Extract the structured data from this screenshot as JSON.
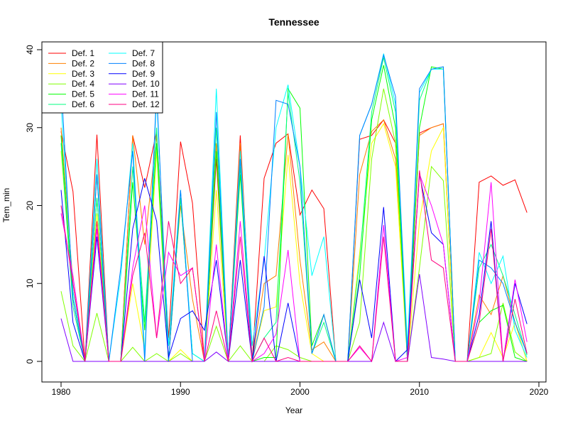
{
  "chart_data": {
    "type": "line",
    "title": "Tennessee",
    "xlabel": "Year",
    "ylabel": "Tem_min",
    "xlim": [
      1980,
      2019
    ],
    "ylim": [
      0,
      40
    ],
    "x_ticks": [
      "1980",
      "1990",
      "2000",
      "2010",
      "2020"
    ],
    "y_ticks": [
      "0",
      "10",
      "20",
      "30",
      "40"
    ],
    "grid": false,
    "legend_position": "top-left",
    "x": [
      1980,
      1981,
      1982,
      1983,
      1984,
      1985,
      1986,
      1987,
      1988,
      1989,
      1990,
      1991,
      1992,
      1993,
      1994,
      1995,
      1996,
      1997,
      1998,
      1999,
      2000,
      2001,
      2002,
      2003,
      2004,
      2005,
      2006,
      2007,
      2008,
      2009,
      2010,
      2011,
      2012,
      2013,
      2014,
      2015,
      2016,
      2017,
      2018,
      2019
    ],
    "series": [
      {
        "name": "Def. 1",
        "color": "#FF0000",
        "values": [
          29.5,
          21.8,
          0,
          29.1,
          0,
          0,
          29.0,
          22.3,
          29.5,
          3.0,
          28.2,
          20.3,
          0,
          26.0,
          0,
          29.0,
          0,
          23.5,
          28.0,
          29.2,
          18.8,
          22.0,
          19.6,
          0,
          0,
          28.5,
          29.0,
          31.0,
          28.0,
          0,
          29.3,
          30.0,
          30.5,
          0,
          0,
          23.0,
          23.8,
          22.6,
          23.3,
          19.1
        ]
      },
      {
        "name": "Def. 2",
        "color": "#FF8000",
        "values": [
          30.0,
          10.0,
          0,
          24.0,
          0,
          0,
          29.0,
          15.0,
          29.0,
          2.0,
          20.0,
          8.0,
          0,
          28.0,
          0,
          28.0,
          0,
          10.0,
          11.0,
          29.2,
          13.0,
          1.5,
          2.5,
          0,
          0,
          24.0,
          29.5,
          31.0,
          26.0,
          2.0,
          29.0,
          30.0,
          30.5,
          0,
          0,
          8.5,
          6.0,
          11.0,
          5.0,
          0
        ]
      },
      {
        "name": "Def. 3",
        "color": "#FFFF00",
        "values": [
          27.0,
          8.0,
          0,
          19.0,
          0,
          0,
          10.0,
          1.5,
          27.0,
          0,
          1.5,
          0,
          0,
          22.0,
          0,
          0,
          0,
          6.5,
          7.0,
          26.5,
          10.0,
          1.0,
          0,
          0,
          0,
          14.0,
          28.0,
          30.5,
          25.0,
          0,
          18.0,
          27.0,
          30.0,
          0,
          0,
          0.5,
          3.7,
          0.5,
          5.0,
          0
        ]
      },
      {
        "name": "Def. 4",
        "color": "#80FF00",
        "values": [
          9.0,
          2.0,
          0,
          6.2,
          0,
          0,
          1.8,
          0,
          1.0,
          0,
          1.0,
          0,
          0,
          4.5,
          0,
          2.0,
          0,
          0,
          2.0,
          1.5,
          0.5,
          0,
          0,
          0,
          0,
          5.0,
          26.0,
          35.0,
          28.0,
          0,
          12.0,
          25.0,
          23.2,
          0,
          0,
          0.5,
          1.0,
          7.5,
          1.2,
          0
        ]
      },
      {
        "name": "Def. 5",
        "color": "#00FF00",
        "values": [
          29.0,
          8.0,
          0,
          21.0,
          0,
          0,
          23.0,
          4.0,
          28.0,
          0,
          21.0,
          1.0,
          0,
          27.0,
          0,
          24.0,
          0,
          0.5,
          0.5,
          35.0,
          32.5,
          2.0,
          6.0,
          0,
          0,
          11.0,
          31.0,
          38.0,
          30.0,
          0,
          30.0,
          37.8,
          37.5,
          0,
          0,
          5.0,
          6.5,
          7.2,
          0.5,
          0
        ]
      },
      {
        "name": "Def. 6",
        "color": "#00FF80",
        "values": [
          28.0,
          7.0,
          0,
          21.0,
          0,
          0,
          25.0,
          5.0,
          30.0,
          0,
          21.0,
          1.0,
          0,
          30.0,
          0,
          25.0,
          0,
          3.0,
          5.0,
          34.5,
          23.0,
          1.0,
          5.0,
          0,
          0,
          13.0,
          32.0,
          39.0,
          32.0,
          1.0,
          33.5,
          37.5,
          37.8,
          0,
          0,
          12.0,
          15.0,
          11.0,
          6.0,
          0.8
        ]
      },
      {
        "name": "Def. 7",
        "color": "#00FFFF",
        "values": [
          33.0,
          9.0,
          0,
          26.0,
          0,
          11.0,
          28.0,
          1.0,
          34.0,
          2.0,
          22.0,
          1.0,
          0,
          35.0,
          0,
          27.0,
          2.0,
          13.0,
          30.0,
          35.5,
          25.0,
          11.0,
          16.0,
          0,
          0,
          29.0,
          33.0,
          39.5,
          33.0,
          2.0,
          34.5,
          37.5,
          37.5,
          0,
          0,
          14.0,
          10.0,
          13.5,
          4.0,
          0.5
        ]
      },
      {
        "name": "Def. 8",
        "color": "#0080FF",
        "values": [
          36.0,
          8.0,
          0,
          24.0,
          0,
          12.0,
          27.0,
          0,
          35.0,
          0,
          22.0,
          0,
          0,
          32.0,
          0,
          26.0,
          0,
          7.0,
          33.5,
          33.0,
          25.0,
          1.0,
          6.0,
          0,
          0,
          29.0,
          33.0,
          39.3,
          34.0,
          0,
          35.0,
          37.5,
          37.8,
          0,
          0,
          13.0,
          12.0,
          10.0,
          5.0,
          1.0
        ]
      },
      {
        "name": "Def. 9",
        "color": "#0000FF",
        "values": [
          22.0,
          5.0,
          0,
          16.0,
          0,
          0,
          17.0,
          23.5,
          18.0,
          0.5,
          5.5,
          6.5,
          4.0,
          13.0,
          0,
          13.0,
          0,
          13.5,
          0,
          7.5,
          0,
          0,
          0,
          0,
          0,
          10.5,
          3.0,
          19.8,
          0,
          1.5,
          24.0,
          16.5,
          15.0,
          0,
          0,
          6.0,
          18.0,
          0,
          10.0,
          4.8
        ]
      },
      {
        "name": "Def. 10",
        "color": "#8000FF",
        "values": [
          5.5,
          0,
          0,
          0,
          0,
          0,
          0,
          0,
          0,
          0,
          0,
          0,
          0,
          1.2,
          0,
          0,
          0,
          0,
          0,
          0,
          0,
          0,
          0,
          0,
          0,
          0,
          0,
          5.0,
          0,
          0,
          11.2,
          0.5,
          0.3,
          0,
          0,
          0,
          0,
          0,
          0,
          0
        ]
      },
      {
        "name": "Def. 11",
        "color": "#FF00FF",
        "values": [
          19.0,
          11.0,
          0,
          17.0,
          0,
          0,
          12.0,
          20.0,
          3.0,
          14.0,
          11.0,
          12.0,
          0,
          15.0,
          0,
          18.0,
          0,
          1.0,
          3.5,
          14.3,
          0,
          0,
          0,
          0,
          0,
          1.8,
          0,
          17.5,
          0,
          0.5,
          24.0,
          20.0,
          15.0,
          0,
          0,
          7.5,
          23.0,
          0,
          10.5,
          2.5
        ]
      },
      {
        "name": "Def. 12",
        "color": "#FF0080",
        "values": [
          20.0,
          10.0,
          0,
          18.0,
          0,
          0,
          11.0,
          16.5,
          3.0,
          18.0,
          10.0,
          12.0,
          0,
          6.5,
          0,
          16.0,
          0,
          3.0,
          0,
          0.5,
          0,
          0,
          0,
          0,
          0,
          2.0,
          0,
          16.0,
          0,
          0,
          24.5,
          13.0,
          12.0,
          0,
          0,
          5.0,
          17.0,
          0,
          8.0,
          1.0
        ]
      }
    ]
  }
}
